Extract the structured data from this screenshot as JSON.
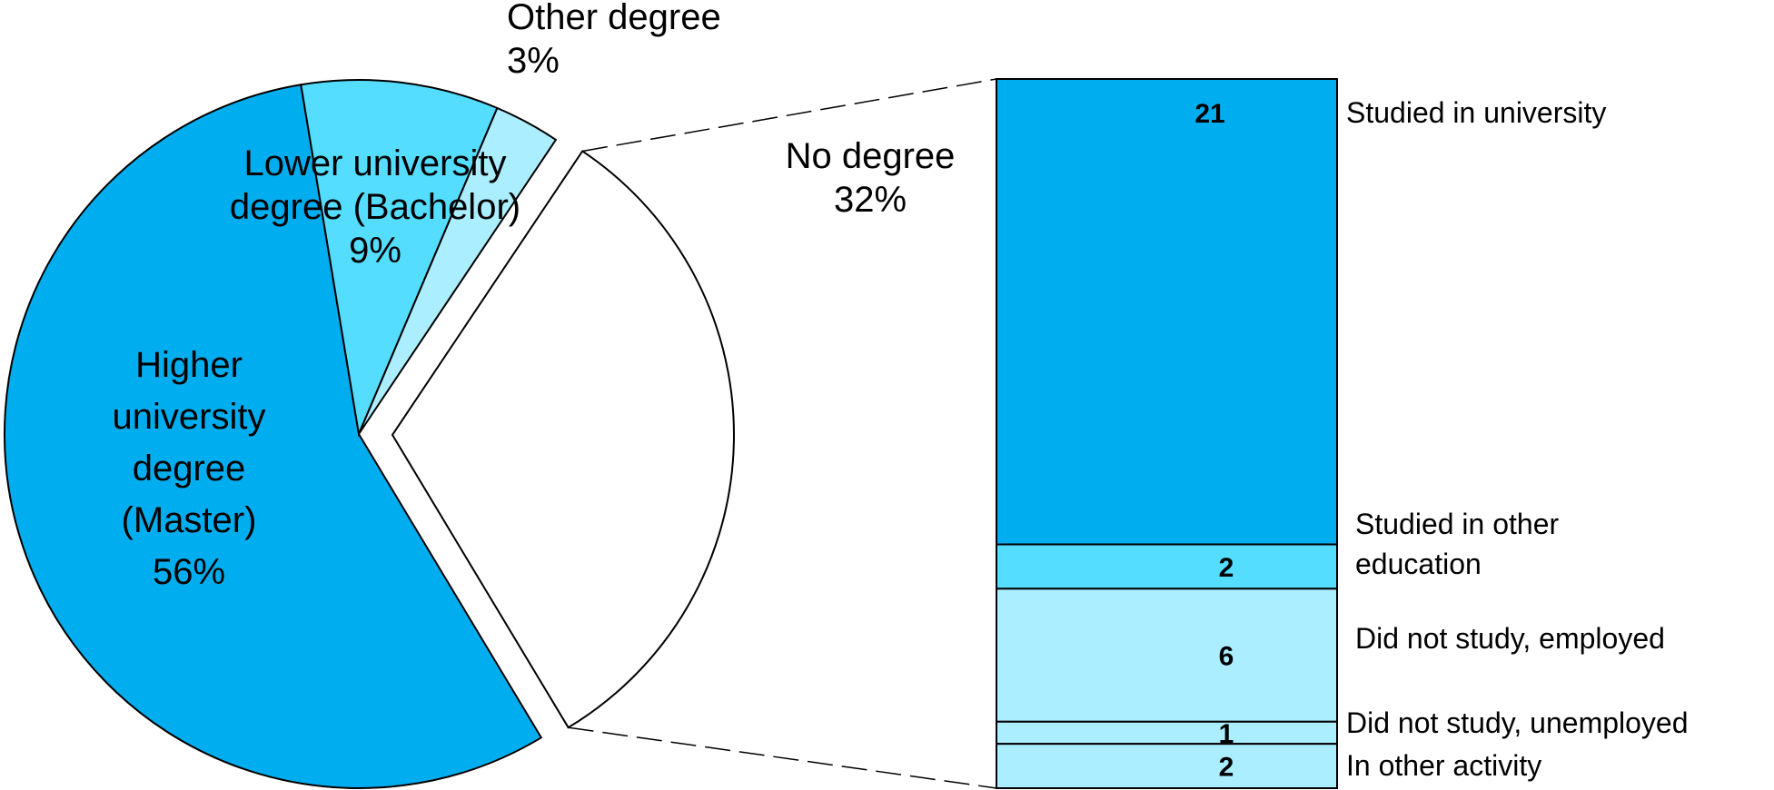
{
  "chart_data": [
    {
      "type": "pie",
      "slices": [
        {
          "label": [
            "Higher",
            "university",
            "degree",
            "(Master)"
          ],
          "value_label": "56%",
          "value": 56,
          "color": "#00AEEF",
          "exploded": false
        },
        {
          "label": [
            "Lower university",
            "degree (Bachelor)"
          ],
          "value_label": "9%",
          "value": 9,
          "color": "#55DDFF",
          "exploded": false
        },
        {
          "label": [
            "Other degree"
          ],
          "value_label": "3%",
          "value": 3,
          "color": "#AAEEFF",
          "exploded": false
        },
        {
          "label": [
            "No degree"
          ],
          "value_label": "32%",
          "value": 32,
          "color": "#FFFFFF",
          "exploded": true
        }
      ]
    },
    {
      "type": "bar",
      "orientation": "stacked-vertical",
      "categories": [
        "Studied in university",
        "Studied in other education",
        "Did not study, employed",
        "Did not study, unemployed",
        "In other activity"
      ],
      "category_label_lines": [
        [
          "Studied in university"
        ],
        [
          "Studied in other",
          "education"
        ],
        [
          "Did not study, employed"
        ],
        [
          "Did not study, unemployed"
        ],
        [
          "In other activity"
        ]
      ],
      "values": [
        21,
        2,
        6,
        1,
        2
      ],
      "value_labels": [
        "21",
        "2",
        "6",
        "1",
        "2"
      ],
      "colors": [
        "#00AEEF",
        "#55DDFF",
        "#AAEEFF",
        "#AAEEFF",
        "#AAEEFF"
      ]
    }
  ]
}
